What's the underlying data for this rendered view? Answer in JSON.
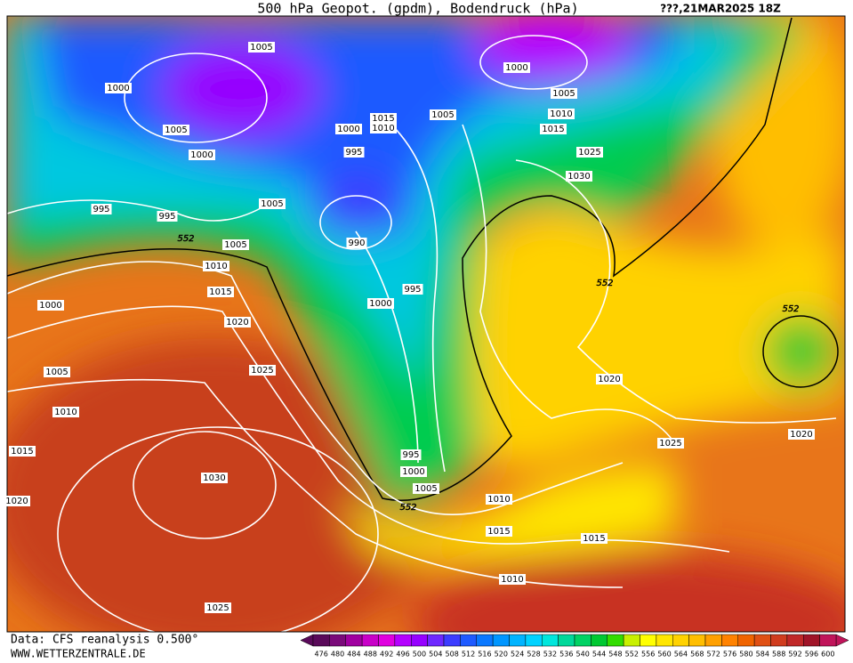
{
  "title": "500 hPa Geopot. (gpdm), Bodendruck (hPa)",
  "date": "???,21MAR2025 18Z",
  "labels": [
    "1005",
    "1000",
    "1005",
    "1000",
    "1015",
    "1010",
    "1000",
    "995",
    "1005",
    "1000",
    "1005",
    "1010",
    "1015",
    "1025",
    "1030",
    "995",
    "995",
    "1005",
    "552",
    "1005",
    "990",
    "1010",
    "1015",
    "995",
    "1000",
    "1000",
    "552",
    "552",
    "1020",
    "1005",
    "1025",
    "1020",
    "1010",
    "1025",
    "1020",
    "1015",
    "995",
    "1000",
    "1030",
    "1005",
    "552",
    "1020",
    "1010",
    "1015",
    "1015",
    "1010",
    "1025"
  ],
  "footer": {
    "source": "Data: CFS reanalysis 0.500°",
    "site": "WWW.WETTERZENTRALE.DE"
  },
  "scale": {
    "values": [
      476,
      480,
      484,
      488,
      492,
      496,
      500,
      504,
      508,
      512,
      516,
      520,
      524,
      528,
      532,
      536,
      540,
      544,
      548,
      552,
      556,
      560,
      564,
      568,
      572,
      576,
      580,
      584,
      588,
      592,
      596,
      600
    ],
    "colors": [
      "#5a0a5a",
      "#7a0a7a",
      "#a000a0",
      "#c800c8",
      "#e000e0",
      "#b400ff",
      "#9600ff",
      "#6e28ff",
      "#3c3cff",
      "#1e5aff",
      "#0a78ff",
      "#0096ff",
      "#00b4ff",
      "#00d2ff",
      "#00e6dc",
      "#00d89a",
      "#00d264",
      "#00c832",
      "#32dc00",
      "#c8f000",
      "#ffff00",
      "#ffe600",
      "#ffd200",
      "#ffbe00",
      "#ffa000",
      "#ff8200",
      "#f06400",
      "#e05014",
      "#d03c1e",
      "#c02828",
      "#a01428",
      "#c0145a"
    ]
  }
}
